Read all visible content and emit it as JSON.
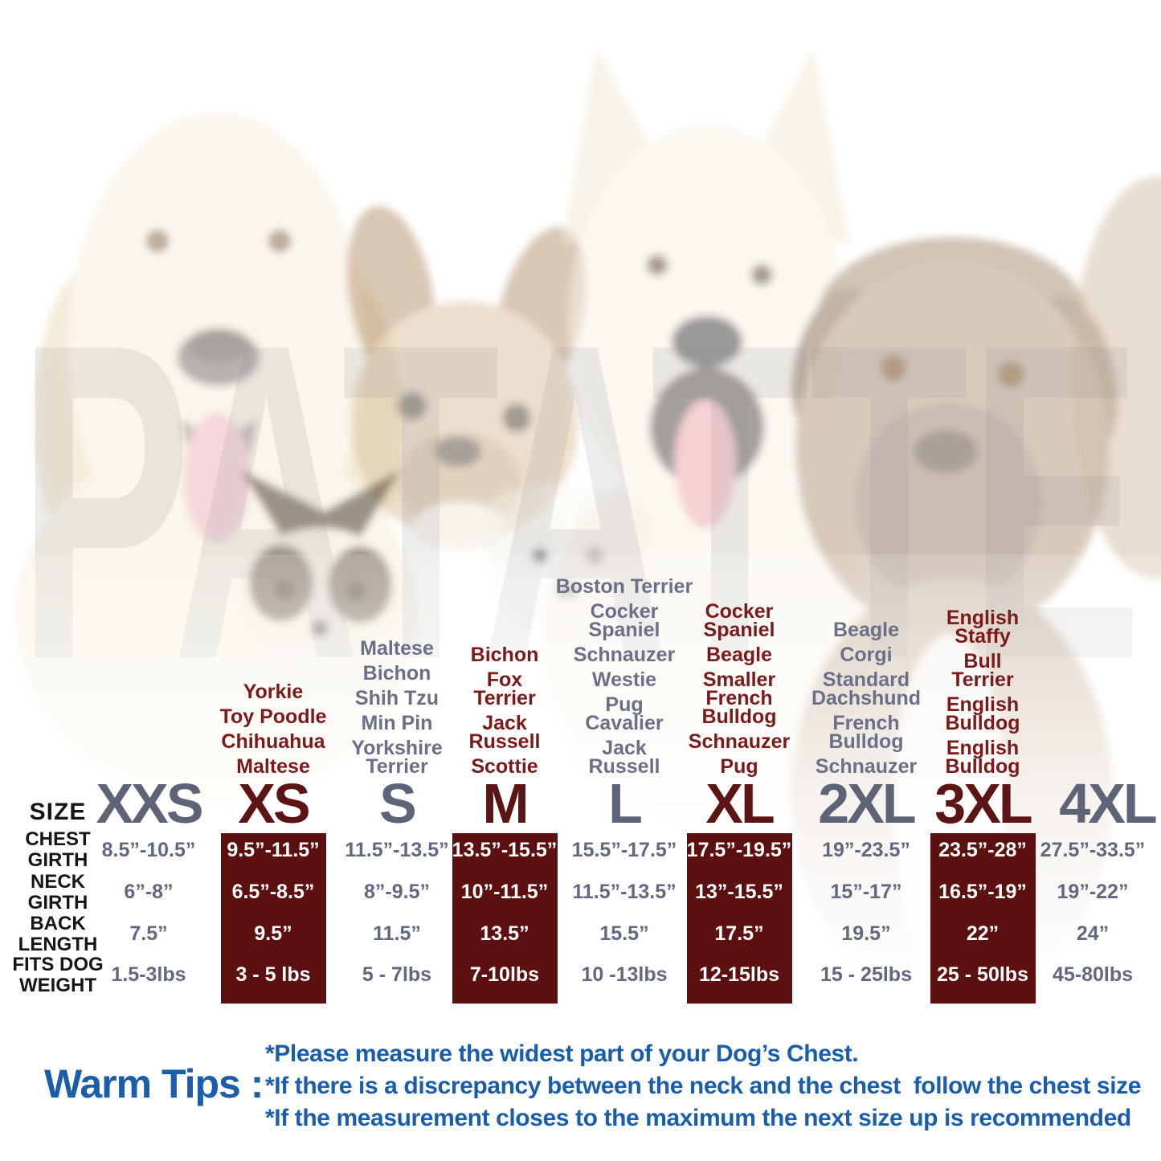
{
  "watermark": "PATATTE",
  "colors": {
    "maroon_box": "#5c1110",
    "maroon_text": "#5c1414",
    "breed_maroon": "#7a1a1a",
    "slate": "#5e6478",
    "value_gray": "#60697f",
    "breed_gray": "#6a7088",
    "tip_blue": "#1a5dab",
    "label_black": "#161616"
  },
  "row_labels": {
    "size": "SIZE",
    "chest": "CHEST\nGIRTH",
    "neck": "NECK\nGIRTH",
    "back": "BACK\nLENGTH",
    "weight": "FITS DOG\nWEIGHT"
  },
  "chart_data": {
    "type": "table",
    "row_headers": [
      "SIZE",
      "CHEST GIRTH",
      "NECK GIRTH",
      "BACK LENGTH",
      "FITS DOG WEIGHT"
    ],
    "columns": [
      {
        "label": "XXS",
        "highlighted": false,
        "breeds": [],
        "chest_girth": "8.5”-10.5”",
        "neck_girth": "6”-8”",
        "back_length": "7.5”",
        "fits_dog_weight": "1.5-3lbs"
      },
      {
        "label": "XS",
        "highlighted": true,
        "breeds": [
          "Yorkie",
          "Toy Poodle",
          "Chihuahua",
          "Maltese"
        ],
        "chest_girth": "9.5”-11.5”",
        "neck_girth": "6.5”-8.5”",
        "back_length": "9.5”",
        "fits_dog_weight": "3 - 5 lbs"
      },
      {
        "label": "S",
        "highlighted": false,
        "breeds": [
          "Maltese",
          "Bichon",
          "Shih Tzu",
          "Min Pin",
          "Yorkshire\nTerrier"
        ],
        "chest_girth": "11.5”-13.5”",
        "neck_girth": "8”-9.5”",
        "back_length": "11.5”",
        "fits_dog_weight": "5 - 7lbs"
      },
      {
        "label": "M",
        "highlighted": true,
        "breeds": [
          "Bichon",
          "Fox\nTerrier",
          "Jack\nRussell",
          "Scottie"
        ],
        "chest_girth": "13.5”-15.5”",
        "neck_girth": "10”-11.5”",
        "back_length": "13.5”",
        "fits_dog_weight": "7-10lbs"
      },
      {
        "label": "L",
        "highlighted": false,
        "breeds": [
          "Boston Terrier",
          "Cocker\nSpaniel",
          "Schnauzer",
          "Westie",
          "Pug\nCavalier",
          "Jack\nRussell"
        ],
        "chest_girth": "15.5”-17.5”",
        "neck_girth": "11.5”-13.5”",
        "back_length": "15.5”",
        "fits_dog_weight": "10 -13lbs"
      },
      {
        "label": "XL",
        "highlighted": true,
        "breeds": [
          "Cocker\nSpaniel",
          "Beagle",
          "Smaller\nFrench\nBulldog",
          "Schnauzer",
          "Pug"
        ],
        "chest_girth": "17.5”-19.5”",
        "neck_girth": "13”-15.5”",
        "back_length": "17.5”",
        "fits_dog_weight": "12-15lbs"
      },
      {
        "label": "2XL",
        "highlighted": false,
        "breeds": [
          "Beagle",
          "Corgi",
          "Standard\nDachshund",
          "French\nBulldog",
          "Schnauzer"
        ],
        "chest_girth": "19”-23.5”",
        "neck_girth": "15”-17”",
        "back_length": "19.5”",
        "fits_dog_weight": "15 - 25lbs"
      },
      {
        "label": "3XL",
        "highlighted": true,
        "breeds": [
          "English\nStaffy",
          "Bull\nTerrier",
          "English\nBulldog",
          "English\nBulldog"
        ],
        "chest_girth": "23.5”-28”",
        "neck_girth": "16.5”-19”",
        "back_length": "22”",
        "fits_dog_weight": "25 - 50lbs"
      },
      {
        "label": "4XL",
        "highlighted": false,
        "breeds": [],
        "chest_girth": "27.5”-33.5”",
        "neck_girth": "19”-22”",
        "back_length": "24”",
        "fits_dog_weight": "45-80lbs"
      }
    ]
  },
  "warm_tips": {
    "label": "Warm Tips :",
    "tips": [
      "*Please measure the widest part of your Dog’s Chest.",
      "*If there is a discrepancy between the neck and the chest  follow the chest size",
      "*If the measurement closes to the maximum the next size up is recommended"
    ]
  }
}
